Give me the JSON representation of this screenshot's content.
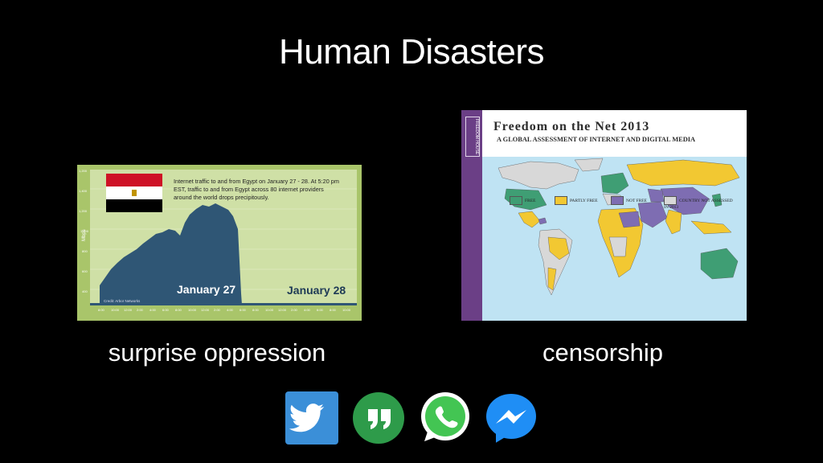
{
  "slide": {
    "title": "Human Disasters",
    "captions": {
      "left": "surprise oppression",
      "right": "censorship"
    }
  },
  "traffic_chart": {
    "note": "Internet traffic to and from Egypt on January 27 - 28. At 5:20 pm EST, traffic to and from Egypt across 80 internet providers around the world  drops precipitously.",
    "ylabel": "Mbps",
    "day1": "January 27",
    "day2": "January 28",
    "credit": "Credit: Arbor Networks",
    "colors": {
      "frame": "#a9c56a",
      "plot": "#cfe0a6",
      "area": "#2f5675"
    }
  },
  "freedom_map": {
    "brand": "FREEDOM HOUSE",
    "title": "Freedom on the Net 2013",
    "subtitle": "A GLOBAL ASSESSMENT OF INTERNET AND DIGITAL MEDIA",
    "legend": [
      {
        "label": "FREE",
        "color": "#3f9e74"
      },
      {
        "label": "PARTLY FREE",
        "color": "#f2c832"
      },
      {
        "label": "NOT FREE",
        "color": "#7e6db2"
      },
      {
        "label": "COUNTRY NOT ASSESSED IN 2013",
        "color": "#d8d8d8"
      }
    ]
  },
  "apps": [
    {
      "name": "twitter-icon",
      "color": "#3b8fd8"
    },
    {
      "name": "hangouts-icon",
      "color": "#2e9b4a"
    },
    {
      "name": "whatsapp-icon",
      "color": "#43c553"
    },
    {
      "name": "messenger-icon",
      "color": "#1f8ef5"
    }
  ]
}
